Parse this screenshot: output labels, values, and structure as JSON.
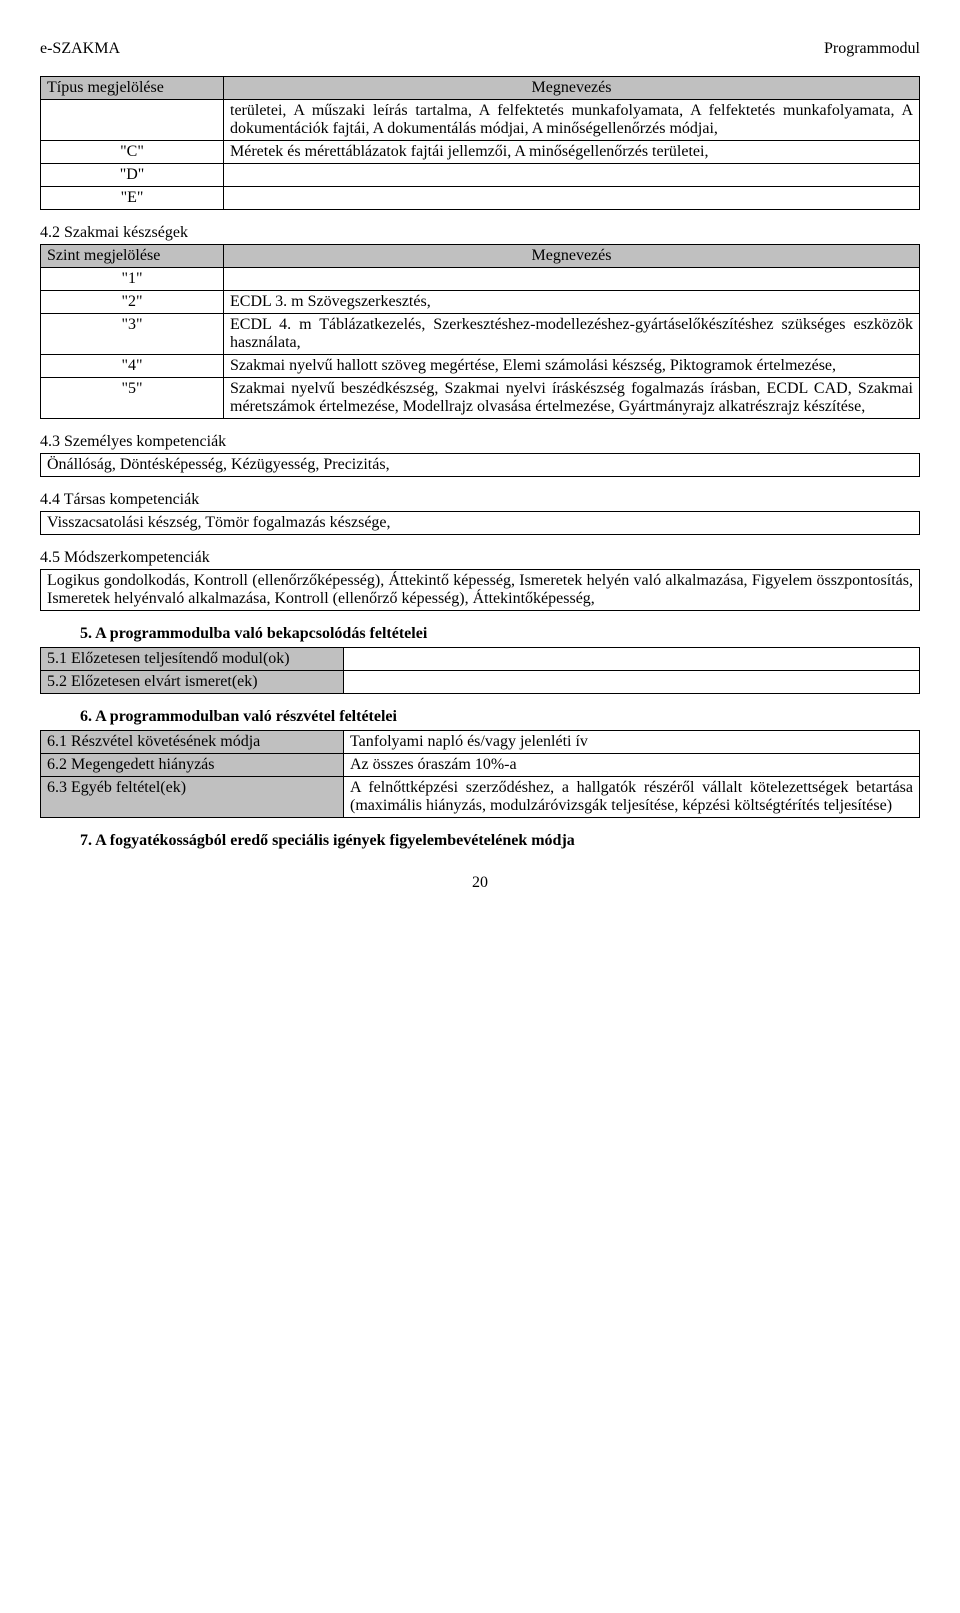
{
  "colors": {
    "header_bg": "#c0c0c0",
    "text": "#000000",
    "border": "#000000",
    "background": "#ffffff"
  },
  "typography": {
    "family": "Times New Roman",
    "body_size_pt": 12,
    "bold_sections": true
  },
  "header": {
    "left": "e-SZAKMA",
    "right": "Programmodul"
  },
  "table1": {
    "head_left": "Típus megjelölése",
    "head_right": "Megnevezés",
    "rows": [
      {
        "l": "",
        "r": "területei, A műszaki leírás tartalma, A felfektetés munkafolyamata, A felfektetés munkafolyamata, A dokumentációk fajtái, A dokumentálás módjai, A minőségellenőrzés módjai,"
      },
      {
        "l": "\"C\"",
        "r": "Méretek és mérettáblázatok fajtái jellemzői, A minőségellenőrzés területei,"
      },
      {
        "l": "\"D\"",
        "r": ""
      },
      {
        "l": "\"E\"",
        "r": ""
      }
    ]
  },
  "sec42": "4.2 Szakmai készségek",
  "table2": {
    "head_left": "Szint megjelölése",
    "head_right": "Megnevezés",
    "rows": [
      {
        "l": "\"1\"",
        "r": ""
      },
      {
        "l": "\"2\"",
        "r": "ECDL 3. m Szövegszerkesztés,"
      },
      {
        "l": "\"3\"",
        "r": "ECDL 4. m Táblázatkezelés, Szerkesztéshez-modellezéshez-gyártáselőkészítéshez szükséges eszközök használata,"
      },
      {
        "l": "\"4\"",
        "r": "Szakmai nyelvű hallott szöveg megértése, Elemi számolási készség, Piktogramok értelmezése,"
      },
      {
        "l": "\"5\"",
        "r": "Szakmai nyelvű beszédkészség, Szakmai nyelvi íráskészség fogalmazás írásban, ECDL CAD, Szakmai méretszámok értelmezése, Modellrajz olvasása értelmezése, Gyártmányrajz alkatrészrajz készítése,"
      }
    ]
  },
  "sec43": {
    "title": "4.3 Személyes kompetenciák",
    "box": "Önállóság, Döntésképesség, Kézügyesség, Precizitás,"
  },
  "sec44": {
    "title": "4.4 Társas kompetenciák",
    "box": "Visszacsatolási készség, Tömör fogalmazás készsége,"
  },
  "sec45": {
    "title": "4.5 Módszerkompetenciák",
    "box": "Logikus gondolkodás, Kontroll (ellenőrzőképesség), Áttekintő képesség, Ismeretek helyén való alkalmazása, Figyelem összpontosítás, Ismeretek helyénvaló alkalmazása, Kontroll (ellenőrző képesség), Áttekintőképesség,"
  },
  "sec5": {
    "title": "5. A programmodulba való bekapcsolódás feltételei",
    "rows": [
      {
        "num": "5.1",
        "l": "Előzetesen teljesítendő modul(ok)",
        "r": ""
      },
      {
        "num": "5.2",
        "l": "Előzetesen elvárt ismeret(ek)",
        "r": ""
      }
    ]
  },
  "sec6": {
    "title": "6. A programmodulban való részvétel feltételei",
    "rows": [
      {
        "num": "6.1",
        "l": "Részvétel követésének módja",
        "r": "Tanfolyami napló és/vagy jelenléti ív"
      },
      {
        "num": "6.2",
        "l": "Megengedett hiányzás",
        "r": "Az összes óraszám 10%-a"
      },
      {
        "num": "6.3",
        "l": "Egyéb feltétel(ek)",
        "r": "A felnőttképzési szerződéshez, a hallgatók részéről vállalt kötelezettségek betartása (maximális hiányzás, modulzáróvizsgák teljesítése, képzési költségtérítés teljesítése)"
      }
    ]
  },
  "sec7": "7. A fogyatékosságból eredő speciális igények figyelembevételének módja",
  "page_number": "20"
}
